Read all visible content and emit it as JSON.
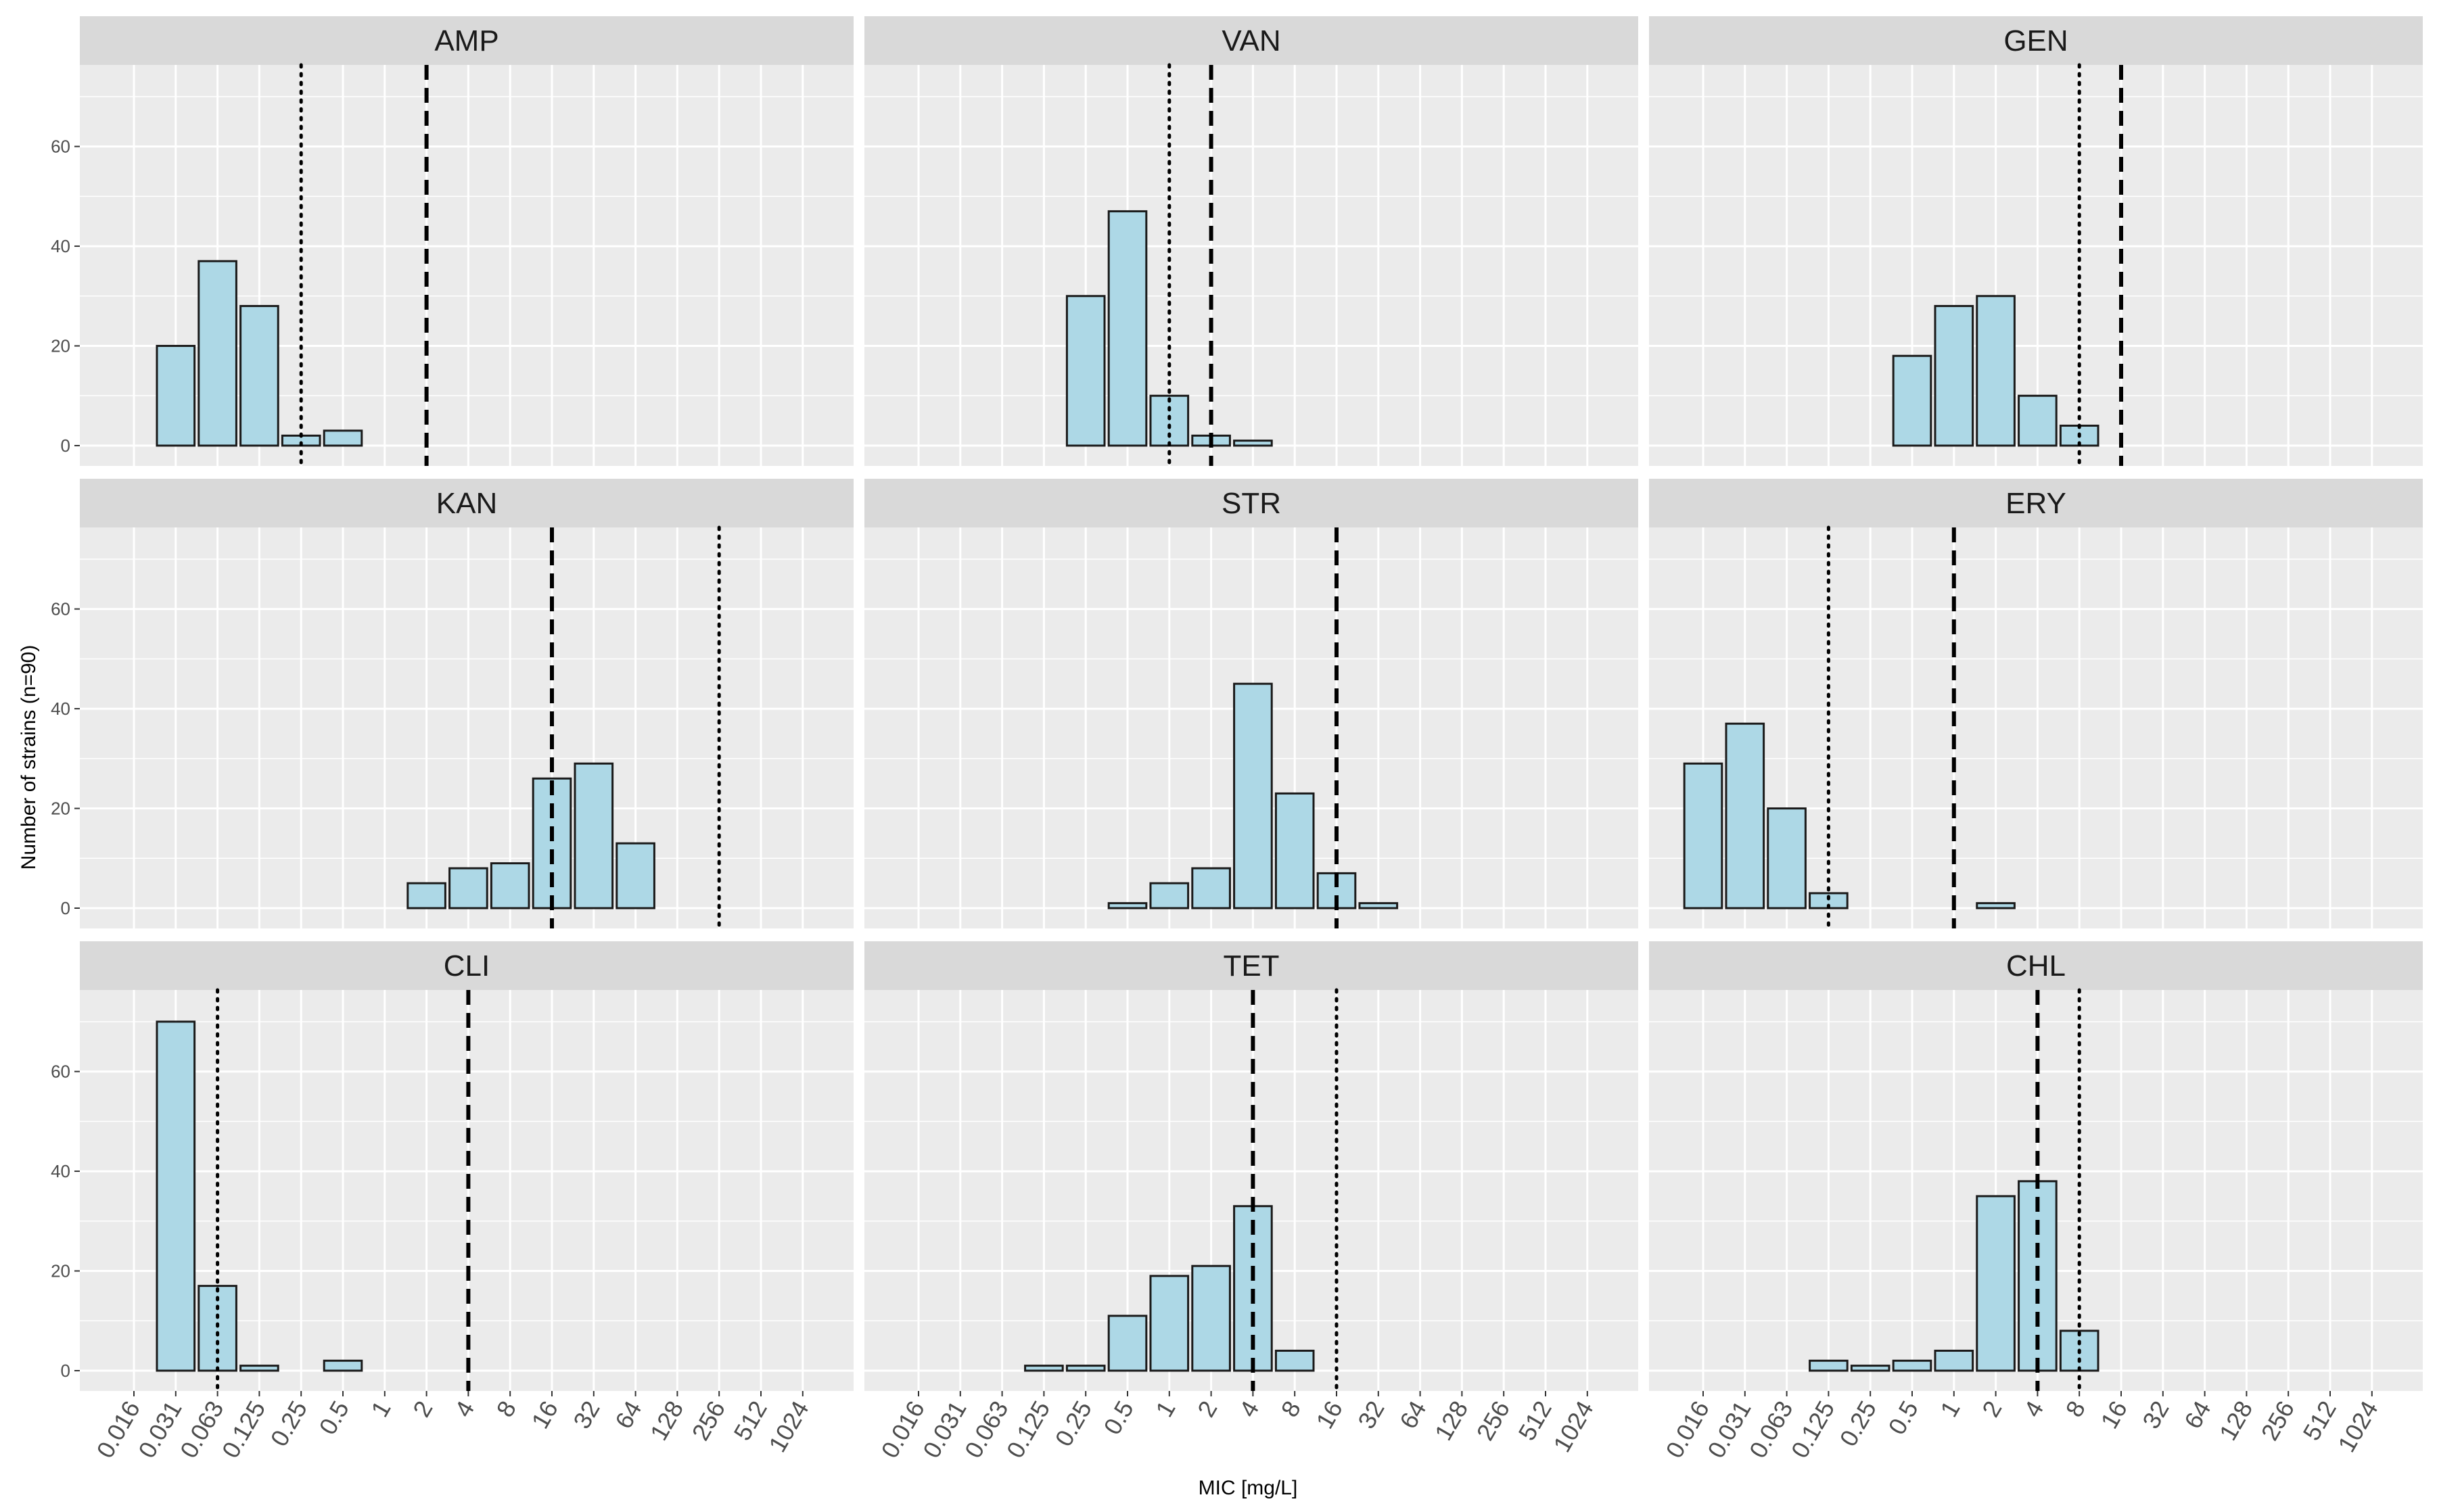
{
  "chart_data": {
    "type": "bar",
    "layout": "facet-grid-3x3",
    "xlabel": "MIC [mg/L]",
    "ylabel": "Number of strains (n=90)",
    "x_ticks": [
      "0.016",
      "0.031",
      "0.063",
      "0.125",
      "0.25",
      "0.5",
      "1",
      "2",
      "4",
      "8",
      "16",
      "32",
      "64",
      "128",
      "256",
      "512",
      "1024"
    ],
    "y_ticks": [
      0,
      20,
      40,
      60
    ],
    "ylim": [
      0,
      75
    ],
    "grid": true,
    "bar_fill": "#add8e6",
    "bar_stroke": "#1a1a1a",
    "panel_background": "#ebebeb",
    "strip_background": "#d9d9d9",
    "gridline_color": "#ffffff",
    "facets": [
      {
        "name": "AMP",
        "values": [
          0,
          20,
          37,
          28,
          2,
          3,
          0,
          0,
          0,
          0,
          0,
          0,
          0,
          0,
          0,
          0,
          0
        ],
        "dotted_at": "0.25",
        "dashed_at": "2"
      },
      {
        "name": "VAN",
        "values": [
          0,
          0,
          0,
          0,
          30,
          47,
          10,
          2,
          1,
          0,
          0,
          0,
          0,
          0,
          0,
          0,
          0
        ],
        "dotted_at": "1",
        "dashed_at": "2"
      },
      {
        "name": "GEN",
        "values": [
          0,
          0,
          0,
          0,
          0,
          18,
          28,
          30,
          10,
          4,
          0,
          0,
          0,
          0,
          0,
          0,
          0
        ],
        "dotted_at": "8",
        "dashed_at": "16"
      },
      {
        "name": "KAN",
        "values": [
          0,
          0,
          0,
          0,
          0,
          0,
          0,
          5,
          8,
          9,
          26,
          29,
          13,
          0,
          0,
          0,
          0
        ],
        "dotted_at": "256",
        "dashed_at": "16"
      },
      {
        "name": "STR",
        "values": [
          0,
          0,
          0,
          0,
          0,
          1,
          5,
          8,
          45,
          23,
          7,
          1,
          0,
          0,
          0,
          0,
          0
        ],
        "dotted_at": null,
        "dashed_at": "16"
      },
      {
        "name": "ERY",
        "values": [
          29,
          37,
          20,
          3,
          0,
          0,
          0,
          1,
          0,
          0,
          0,
          0,
          0,
          0,
          0,
          0,
          0
        ],
        "dotted_at": "0.125",
        "dashed_at": "1"
      },
      {
        "name": "CLI",
        "values": [
          0,
          70,
          17,
          1,
          0,
          2,
          0,
          0,
          0,
          0,
          0,
          0,
          0,
          0,
          0,
          0,
          0
        ],
        "dotted_at": "0.063",
        "dashed_at": "4"
      },
      {
        "name": "TET",
        "values": [
          0,
          0,
          0,
          1,
          1,
          11,
          19,
          21,
          33,
          4,
          0,
          0,
          0,
          0,
          0,
          0,
          0
        ],
        "dotted_at": "16",
        "dashed_at": "4"
      },
      {
        "name": "CHL",
        "values": [
          0,
          0,
          0,
          2,
          1,
          2,
          4,
          35,
          38,
          8,
          0,
          0,
          0,
          0,
          0,
          0,
          0
        ],
        "dotted_at": "8",
        "dashed_at": "4"
      }
    ]
  }
}
